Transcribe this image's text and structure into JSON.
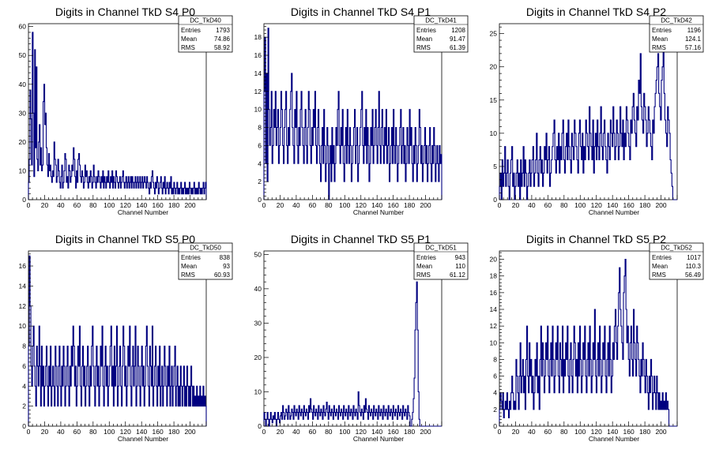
{
  "colors": {
    "histogram": "#000080",
    "axis": "#000000",
    "background": "#ffffff"
  },
  "chart_data": [
    {
      "type": "histogram",
      "title": "Digits in Channel TkD S4 P0",
      "xlabel": "Channel Number",
      "ylabel": "",
      "xlim": [
        0,
        220
      ],
      "ylim": [
        0,
        61
      ],
      "xticks": [
        0,
        20,
        40,
        60,
        80,
        100,
        120,
        140,
        160,
        180,
        200
      ],
      "yticks": [
        0,
        10,
        20,
        30,
        40,
        50,
        60
      ],
      "stats": {
        "name": "DC_TkD40",
        "entries": "1793",
        "mean": "74.86",
        "rms": "58.92"
      },
      "values": [
        6,
        14,
        38,
        28,
        12,
        58,
        30,
        8,
        52,
        18,
        46,
        14,
        10,
        20,
        26,
        12,
        18,
        10,
        12,
        34,
        40,
        26,
        30,
        18,
        12,
        8,
        16,
        10,
        12,
        8,
        6,
        10,
        8,
        20,
        14,
        12,
        6,
        8,
        14,
        10,
        6,
        4,
        8,
        12,
        4,
        6,
        10,
        16,
        14,
        6,
        8,
        4,
        12,
        10,
        6,
        8,
        12,
        10,
        18,
        14,
        8,
        4,
        10,
        6,
        14,
        16,
        12,
        8,
        6,
        10,
        8,
        4,
        6,
        12,
        8,
        10,
        6,
        4,
        8,
        6,
        10,
        8,
        4,
        6,
        12,
        8,
        6,
        4,
        8,
        6,
        10,
        8,
        6,
        4,
        8,
        6,
        10,
        4,
        8,
        6,
        4,
        8,
        6,
        10,
        6,
        4,
        8,
        6,
        10,
        4,
        8,
        6,
        4,
        10,
        8,
        6,
        4,
        6,
        8,
        4,
        6,
        8,
        10,
        6,
        4,
        6,
        8,
        4,
        6,
        8,
        4,
        6,
        8,
        4,
        8,
        6,
        4,
        6,
        8,
        4,
        6,
        8,
        4,
        6,
        8,
        4,
        6,
        8,
        4,
        6,
        8,
        6,
        4,
        8,
        6,
        4,
        2,
        6,
        4,
        8,
        10,
        6,
        4,
        2,
        6,
        4,
        8,
        6,
        2,
        4,
        6,
        8,
        4,
        2,
        6,
        4,
        8,
        2,
        4,
        6,
        4,
        2,
        6,
        4,
        8,
        2,
        4,
        2,
        6,
        4,
        2,
        4,
        6,
        2,
        4,
        2,
        4,
        6,
        2,
        4,
        2,
        4,
        6,
        2,
        4,
        2,
        4,
        2,
        6,
        4,
        2,
        4,
        2,
        4,
        6,
        2,
        4,
        2,
        4,
        2,
        6,
        4,
        2,
        4,
        2,
        4,
        6,
        2,
        4,
        6
      ]
    },
    {
      "type": "histogram",
      "title": "Digits in Channel TkD S4 P1",
      "xlabel": "Channel Number",
      "ylabel": "",
      "xlim": [
        0,
        220
      ],
      "ylim": [
        0,
        19.5
      ],
      "xticks": [
        0,
        20,
        40,
        60,
        80,
        100,
        120,
        140,
        160,
        180,
        200
      ],
      "yticks": [
        0,
        2,
        4,
        6,
        8,
        10,
        12,
        14,
        16,
        18
      ],
      "stats": {
        "name": "DC_TkD41",
        "entries": "1208",
        "mean": "91.47",
        "rms": "61.39"
      },
      "values": [
        12,
        18,
        4,
        14,
        2,
        19,
        10,
        6,
        8,
        12,
        4,
        6,
        10,
        8,
        12,
        6,
        8,
        10,
        4,
        6,
        8,
        12,
        10,
        6,
        4,
        8,
        10,
        12,
        6,
        4,
        8,
        6,
        10,
        12,
        14,
        8,
        6,
        4,
        10,
        8,
        12,
        6,
        4,
        8,
        6,
        10,
        12,
        8,
        6,
        4,
        8,
        10,
        6,
        4,
        8,
        12,
        10,
        6,
        4,
        8,
        6,
        10,
        8,
        12,
        6,
        4,
        8,
        10,
        6,
        4,
        2,
        6,
        8,
        4,
        10,
        6,
        2,
        4,
        8,
        6,
        0,
        4,
        6,
        2,
        8,
        4,
        6,
        2,
        4,
        8,
        6,
        10,
        12,
        6,
        4,
        8,
        6,
        10,
        4,
        2,
        6,
        8,
        4,
        10,
        6,
        4,
        8,
        6,
        2,
        4,
        6,
        8,
        10,
        4,
        6,
        8,
        2,
        4,
        6,
        8,
        10,
        12,
        6,
        4,
        8,
        6,
        10,
        4,
        8,
        6,
        2,
        4,
        8,
        6,
        10,
        4,
        6,
        8,
        10,
        6,
        4,
        8,
        12,
        6,
        4,
        8,
        10,
        6,
        4,
        8,
        6,
        10,
        4,
        6,
        8,
        2,
        4,
        6,
        8,
        4,
        10,
        6,
        4,
        8,
        6,
        2,
        4,
        6,
        8,
        10,
        4,
        6,
        8,
        4,
        6,
        2,
        4,
        8,
        6,
        4,
        10,
        6,
        8,
        4,
        2,
        6,
        4,
        8,
        6,
        2,
        4,
        6,
        10,
        8,
        4,
        6,
        2,
        4,
        6,
        8,
        4,
        6,
        2,
        4,
        6,
        8,
        4,
        2,
        6,
        4,
        8,
        6,
        2,
        4,
        6,
        4,
        2,
        6,
        4,
        5
      ]
    },
    {
      "type": "histogram",
      "title": "Digits in Channel TkD S4 P2",
      "xlabel": "Channel Number",
      "ylabel": "",
      "xlim": [
        0,
        220
      ],
      "ylim": [
        0,
        26.5
      ],
      "xticks": [
        0,
        20,
        40,
        60,
        80,
        100,
        120,
        140,
        160,
        180,
        200
      ],
      "yticks": [
        0,
        5,
        10,
        15,
        20,
        25
      ],
      "stats": {
        "name": "DC_TkD42",
        "entries": "1196",
        "mean": "124.1",
        "rms": "57.16"
      },
      "values": [
        2,
        4,
        0,
        6,
        2,
        4,
        8,
        2,
        4,
        6,
        2,
        0,
        4,
        6,
        8,
        2,
        4,
        0,
        2,
        4,
        6,
        2,
        4,
        0,
        6,
        2,
        4,
        8,
        2,
        6,
        4,
        0,
        2,
        4,
        6,
        2,
        4,
        6,
        8,
        2,
        4,
        6,
        10,
        4,
        2,
        6,
        8,
        4,
        6,
        2,
        4,
        8,
        6,
        10,
        4,
        6,
        8,
        2,
        4,
        6,
        8,
        10,
        12,
        6,
        4,
        8,
        6,
        10,
        4,
        8,
        6,
        10,
        12,
        6,
        4,
        8,
        10,
        6,
        12,
        8,
        6,
        4,
        10,
        8,
        6,
        12,
        10,
        8,
        6,
        4,
        10,
        12,
        8,
        6,
        10,
        4,
        8,
        6,
        12,
        10,
        8,
        6,
        14,
        10,
        8,
        6,
        12,
        4,
        8,
        10,
        6,
        12,
        8,
        6,
        10,
        14,
        8,
        6,
        10,
        12,
        8,
        6,
        4,
        10,
        8,
        6,
        12,
        10,
        8,
        14,
        10,
        6,
        8,
        12,
        10,
        6,
        8,
        14,
        10,
        8,
        12,
        6,
        10,
        8,
        14,
        12,
        10,
        8,
        6,
        12,
        10,
        14,
        16,
        12,
        10,
        8,
        14,
        12,
        18,
        16,
        22,
        14,
        12,
        10,
        16,
        14,
        12,
        8,
        10,
        14,
        12,
        10,
        8,
        6,
        12,
        10,
        14,
        16,
        18,
        20,
        22,
        16,
        14,
        12,
        18,
        20,
        24,
        16,
        12,
        10,
        8,
        14,
        12,
        10,
        6,
        4,
        2,
        0,
        0,
        0,
        0,
        0
      ]
    },
    {
      "type": "histogram",
      "title": "Digits in Channel TkD S5 P0",
      "xlabel": "Channel Number",
      "ylabel": "",
      "xlim": [
        0,
        220
      ],
      "ylim": [
        0,
        17.5
      ],
      "xticks": [
        0,
        20,
        40,
        60,
        80,
        100,
        120,
        140,
        160,
        180,
        200
      ],
      "yticks": [
        0,
        2,
        4,
        6,
        8,
        10,
        12,
        14,
        16
      ],
      "stats": {
        "name": "DC_TkD50",
        "entries": "838",
        "mean": "93",
        "rms": "60.93"
      },
      "values": [
        8,
        17,
        12,
        6,
        4,
        8,
        10,
        6,
        4,
        2,
        8,
        6,
        4,
        10,
        6,
        2,
        8,
        4,
        6,
        2,
        4,
        6,
        8,
        4,
        2,
        6,
        4,
        8,
        2,
        4,
        6,
        4,
        2,
        8,
        6,
        4,
        2,
        6,
        8,
        4,
        2,
        6,
        4,
        8,
        6,
        2,
        4,
        6,
        8,
        4,
        2,
        6,
        4,
        8,
        6,
        10,
        8,
        4,
        6,
        2,
        4,
        8,
        6,
        10,
        4,
        2,
        6,
        8,
        4,
        6,
        2,
        4,
        6,
        8,
        4,
        2,
        6,
        4,
        8,
        10,
        6,
        4,
        2,
        6,
        8,
        4,
        6,
        2,
        4,
        8,
        6,
        10,
        4,
        2,
        6,
        8,
        4,
        6,
        2,
        4,
        6,
        8,
        10,
        4,
        6,
        2,
        8,
        4,
        6,
        10,
        2,
        4,
        6,
        8,
        4,
        2,
        6,
        10,
        8,
        4,
        6,
        2,
        4,
        8,
        6,
        10,
        4,
        2,
        6,
        8,
        4,
        6,
        10,
        2,
        4,
        8,
        6,
        4,
        2,
        6,
        8,
        4,
        6,
        2,
        4,
        8,
        10,
        6,
        4,
        2,
        8,
        6,
        4,
        10,
        2,
        4,
        6,
        8,
        4,
        2,
        6,
        4,
        8,
        2,
        4,
        6,
        2,
        4,
        8,
        6,
        4,
        2,
        6,
        4,
        8,
        2,
        4,
        6,
        2,
        4,
        6,
        8,
        2,
        4,
        6,
        2,
        4,
        2,
        6,
        4,
        2,
        4,
        6,
        2,
        4,
        2,
        6,
        4,
        2,
        4,
        2,
        6,
        4,
        2,
        4,
        2,
        3,
        2,
        4,
        2,
        3,
        2,
        4,
        2,
        3,
        2,
        4,
        2,
        3,
        2
      ]
    },
    {
      "type": "histogram",
      "title": "Digits in Channel TkD S5 P1",
      "xlabel": "Channel Number",
      "ylabel": "",
      "xlim": [
        0,
        220
      ],
      "ylim": [
        0,
        51
      ],
      "xticks": [
        0,
        20,
        40,
        60,
        80,
        100,
        120,
        140,
        160,
        180,
        200
      ],
      "yticks": [
        0,
        10,
        20,
        30,
        40,
        50
      ],
      "stats": {
        "name": "DC_TkD51",
        "entries": "943",
        "mean": "110",
        "rms": "61.12"
      },
      "values": [
        4,
        2,
        0,
        2,
        4,
        2,
        0,
        2,
        4,
        2,
        1,
        3,
        2,
        4,
        2,
        0,
        2,
        4,
        2,
        1,
        3,
        4,
        2,
        6,
        4,
        2,
        3,
        5,
        4,
        2,
        6,
        4,
        2,
        3,
        5,
        4,
        2,
        6,
        4,
        3,
        5,
        4,
        2,
        6,
        4,
        3,
        5,
        4,
        2,
        6,
        4,
        3,
        5,
        4,
        2,
        6,
        4,
        8,
        5,
        4,
        2,
        6,
        4,
        3,
        5,
        4,
        2,
        6,
        4,
        3,
        5,
        4,
        2,
        6,
        4,
        3,
        5,
        7,
        4,
        2,
        6,
        4,
        3,
        5,
        4,
        2,
        6,
        4,
        3,
        5,
        4,
        2,
        6,
        4,
        3,
        5,
        4,
        2,
        6,
        4,
        3,
        5,
        4,
        2,
        6,
        4,
        3,
        5,
        4,
        2,
        6,
        4,
        3,
        5,
        4,
        2,
        10,
        6,
        4,
        3,
        5,
        4,
        2,
        6,
        4,
        8,
        5,
        4,
        2,
        6,
        4,
        3,
        5,
        4,
        2,
        6,
        4,
        3,
        5,
        4,
        2,
        6,
        4,
        3,
        5,
        4,
        2,
        6,
        4,
        3,
        5,
        4,
        2,
        6,
        4,
        3,
        5,
        4,
        2,
        6,
        4,
        3,
        5,
        4,
        2,
        6,
        4,
        3,
        5,
        4,
        2,
        6,
        4,
        3,
        5,
        4,
        2,
        6,
        4,
        3,
        0,
        0,
        2,
        4,
        8,
        14,
        28,
        36,
        42,
        28,
        10,
        2,
        0,
        0,
        0,
        0,
        0,
        0,
        0,
        0,
        0,
        0,
        0,
        0,
        0,
        0,
        0,
        0,
        0,
        0,
        0,
        0,
        0,
        0,
        0,
        0,
        0,
        0,
        0
      ]
    },
    {
      "type": "histogram",
      "title": "Digits in Channel TkD S5 P2",
      "xlabel": "Channel Number",
      "ylabel": "",
      "xlim": [
        0,
        220
      ],
      "ylim": [
        0,
        21
      ],
      "xticks": [
        0,
        20,
        40,
        60,
        80,
        100,
        120,
        140,
        160,
        180,
        200
      ],
      "yticks": [
        0,
        2,
        4,
        6,
        8,
        10,
        12,
        14,
        16,
        18,
        20
      ],
      "stats": {
        "name": "DC_TkD52",
        "entries": "1017",
        "mean": "110.3",
        "rms": "56.49"
      },
      "values": [
        2,
        4,
        3,
        2,
        4,
        1,
        2,
        3,
        2,
        4,
        2,
        1,
        3,
        2,
        4,
        6,
        4,
        2,
        3,
        2,
        8,
        6,
        4,
        2,
        6,
        10,
        4,
        6,
        8,
        4,
        6,
        2,
        8,
        12,
        6,
        4,
        10,
        6,
        8,
        4,
        6,
        2,
        4,
        8,
        6,
        10,
        4,
        6,
        2,
        8,
        12,
        6,
        10,
        8,
        4,
        6,
        10,
        8,
        12,
        6,
        4,
        8,
        10,
        6,
        12,
        8,
        4,
        6,
        10,
        8,
        12,
        6,
        4,
        10,
        8,
        6,
        12,
        4,
        8,
        6,
        10,
        8,
        12,
        6,
        4,
        8,
        10,
        6,
        4,
        8,
        12,
        10,
        6,
        8,
        4,
        10,
        6,
        12,
        8,
        4,
        6,
        10,
        8,
        12,
        6,
        4,
        8,
        10,
        6,
        12,
        8,
        4,
        6,
        10,
        8,
        14,
        6,
        4,
        8,
        10,
        6,
        12,
        8,
        4,
        6,
        10,
        8,
        12,
        6,
        4,
        8,
        10,
        6,
        12,
        8,
        4,
        6,
        10,
        8,
        12,
        14,
        10,
        8,
        12,
        16,
        19,
        14,
        12,
        10,
        8,
        16,
        18,
        20,
        14,
        10,
        12,
        8,
        6,
        10,
        12,
        8,
        6,
        14,
        10,
        8,
        6,
        12,
        10,
        8,
        6,
        4,
        8,
        6,
        10,
        8,
        6,
        4,
        8,
        6,
        4,
        2,
        6,
        4,
        8,
        6,
        2,
        4,
        6,
        4,
        2,
        6,
        4,
        2,
        4,
        2,
        3,
        2,
        4,
        2,
        3,
        2,
        4,
        2,
        3,
        2,
        0,
        0,
        0,
        0,
        0,
        0,
        0,
        0,
        0,
        0
      ]
    }
  ]
}
